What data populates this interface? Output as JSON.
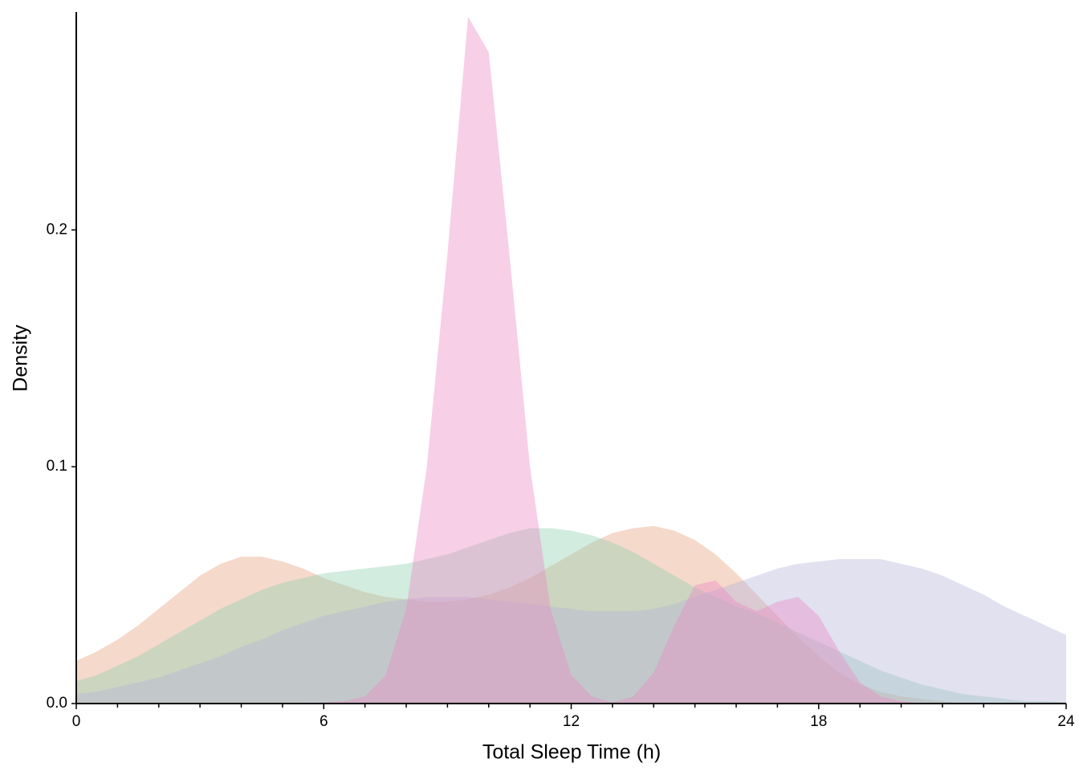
{
  "chart_data": {
    "type": "density",
    "xlabel": "Total Sleep Time (h)",
    "ylabel": "Density",
    "x": [
      0,
      0.5,
      1,
      1.5,
      2,
      2.5,
      3,
      3.5,
      4,
      4.5,
      5,
      5.5,
      6,
      6.5,
      7,
      7.5,
      8,
      8.5,
      9,
      9.5,
      10,
      10.5,
      11,
      11.5,
      12,
      12.5,
      13,
      13.5,
      14,
      14.5,
      15,
      15.5,
      16,
      16.5,
      17,
      17.5,
      18,
      18.5,
      19,
      19.5,
      20,
      20.5,
      21,
      21.5,
      22,
      22.5,
      23,
      23.5,
      24
    ],
    "series": [
      {
        "color": "#e69f7c",
        "values": [
          0.018,
          0.022,
          0.027,
          0.033,
          0.04,
          0.047,
          0.054,
          0.059,
          0.062,
          0.062,
          0.06,
          0.057,
          0.053,
          0.05,
          0.047,
          0.045,
          0.044,
          0.043,
          0.043,
          0.044,
          0.046,
          0.049,
          0.053,
          0.058,
          0.063,
          0.068,
          0.072,
          0.074,
          0.075,
          0.073,
          0.069,
          0.063,
          0.055,
          0.046,
          0.037,
          0.028,
          0.02,
          0.013,
          0.008,
          0.005,
          0.003,
          0.002,
          0.001,
          0,
          0,
          0,
          0,
          0,
          0
        ]
      },
      {
        "color": "#8fcfb0",
        "values": [
          0.0095,
          0.012,
          0.016,
          0.02,
          0.025,
          0.03,
          0.035,
          0.04,
          0.044,
          0.048,
          0.051,
          0.053,
          0.055,
          0.056,
          0.057,
          0.058,
          0.059,
          0.061,
          0.063,
          0.066,
          0.069,
          0.072,
          0.074,
          0.074,
          0.073,
          0.071,
          0.068,
          0.064,
          0.059,
          0.054,
          0.049,
          0.045,
          0.041,
          0.038,
          0.034,
          0.03,
          0.026,
          0.022,
          0.018,
          0.014,
          0.011,
          0.008,
          0.006,
          0.004,
          0.003,
          0.002,
          0.001,
          0.001,
          0.0005
        ]
      },
      {
        "color": "#b3b3d9",
        "values": [
          0.004,
          0.005,
          0.007,
          0.009,
          0.011,
          0.014,
          0.017,
          0.02,
          0.024,
          0.027,
          0.031,
          0.034,
          0.037,
          0.039,
          0.041,
          0.043,
          0.044,
          0.045,
          0.045,
          0.045,
          0.044,
          0.043,
          0.042,
          0.041,
          0.04,
          0.039,
          0.039,
          0.039,
          0.04,
          0.042,
          0.045,
          0.048,
          0.051,
          0.054,
          0.057,
          0.059,
          0.06,
          0.061,
          0.061,
          0.061,
          0.059,
          0.057,
          0.054,
          0.05,
          0.046,
          0.041,
          0.037,
          0.033,
          0.029
        ]
      },
      {
        "color": "#ec86c4",
        "values": [
          0,
          0,
          0,
          0,
          0,
          0,
          0,
          0,
          0,
          0,
          0,
          0,
          0.0005,
          0.001,
          0.003,
          0.012,
          0.04,
          0.1,
          0.19,
          0.29,
          0.275,
          0.19,
          0.1,
          0.04,
          0.012,
          0.003,
          0.0005,
          0.003,
          0.013,
          0.033,
          0.05,
          0.052,
          0.043,
          0.039,
          0.043,
          0.045,
          0.037,
          0.022,
          0.009,
          0.003,
          0.001,
          0,
          0,
          0,
          0,
          0,
          0,
          0,
          0
        ]
      }
    ],
    "fill_opacity": 0.4,
    "xlim": [
      0,
      24
    ],
    "xticks": [
      0,
      6,
      12,
      18,
      24
    ],
    "x_minor_ticks": [
      1,
      2,
      3,
      4,
      5,
      7,
      8,
      9,
      10,
      11,
      13,
      14,
      15,
      16,
      17,
      19,
      20,
      21,
      22,
      23
    ],
    "ylim": [
      0,
      0.292
    ],
    "yticks": [
      {
        "value": 0,
        "label": "0.0"
      },
      0.1,
      0.2
    ]
  }
}
